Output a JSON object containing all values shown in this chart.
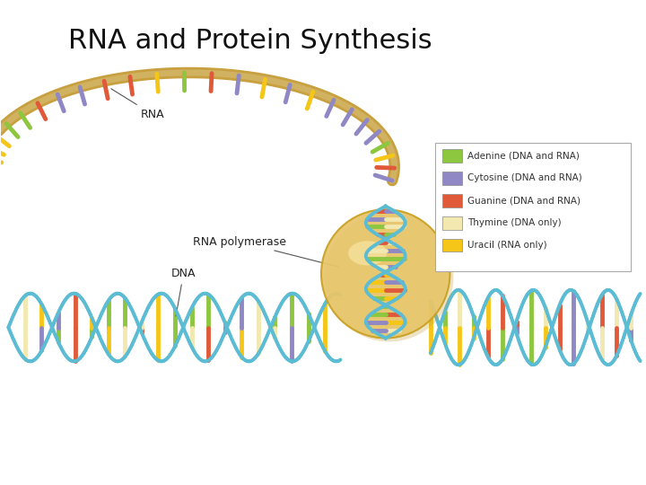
{
  "title": "RNA and Protein Synthesis",
  "title_fontsize": 22,
  "background_color": "#ffffff",
  "legend_items": [
    {
      "label": "Adenine (DNA and RNA)",
      "color": "#8dc63f"
    },
    {
      "label": "Cytosine (DNA and RNA)",
      "color": "#9088c4"
    },
    {
      "label": "Guanine (DNA and RNA)",
      "color": "#e05a3a"
    },
    {
      "label": "Thymine (DNA only)",
      "color": "#f2e8b0"
    },
    {
      "label": "Uracil (RNA only)",
      "color": "#f5c518"
    }
  ],
  "dna_backbone_color": "#5bbcd4",
  "rna_backbone_color_outer": "#c8a040",
  "rna_backbone_color_inner": "#d4ba70",
  "polymerase_color": "#e8c56a",
  "polymerase_edge": "#c8a020",
  "base_colors": [
    "#8dc63f",
    "#9088c4",
    "#e05a3a",
    "#f2e8b0",
    "#f5c518"
  ]
}
